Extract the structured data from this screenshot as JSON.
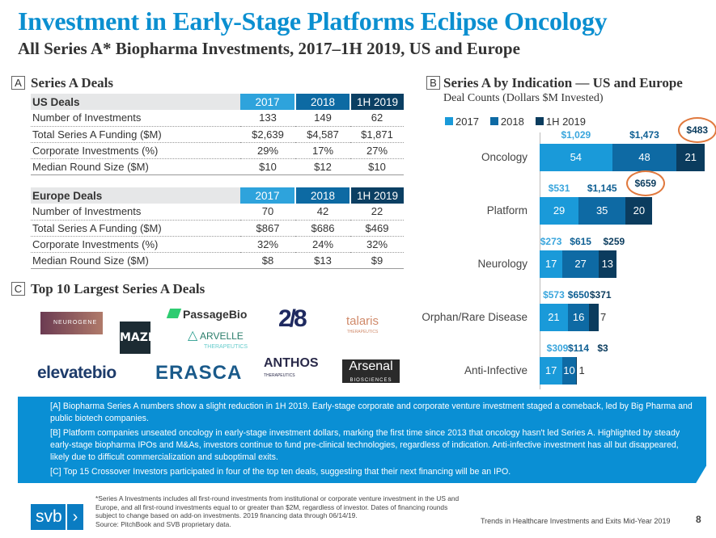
{
  "title": "Investment in Early-Stage Platforms Eclipse Oncology",
  "subtitle": "All Series A* Biopharma Investments, 2017–1H 2019, US and Europe",
  "section_a": {
    "letter": "A",
    "title": "Series A Deals",
    "columns": [
      "2017",
      "2018",
      "1H 2019"
    ],
    "us": {
      "header": "US Deals",
      "rows": [
        {
          "label": "Number of Investments",
          "values": [
            "133",
            "149",
            "62"
          ]
        },
        {
          "label": "Total Series A Funding ($M)",
          "values": [
            "$2,639",
            "$4,587",
            "$1,871"
          ]
        },
        {
          "label": "Corporate Investments (%)",
          "values": [
            "29%",
            "17%",
            "27%"
          ]
        },
        {
          "label": "Median Round Size ($M)",
          "values": [
            "$10",
            "$12",
            "$10"
          ]
        }
      ]
    },
    "europe": {
      "header": "Europe Deals",
      "rows": [
        {
          "label": "Number of Investments",
          "values": [
            "70",
            "42",
            "22"
          ]
        },
        {
          "label": "Total Series A Funding ($M)",
          "values": [
            "$867",
            "$686",
            "$469"
          ]
        },
        {
          "label": "Corporate Investments (%)",
          "values": [
            "32%",
            "24%",
            "32%"
          ]
        },
        {
          "label": "Median Round Size ($M)",
          "values": [
            "$8",
            "$13",
            "$9"
          ]
        }
      ]
    }
  },
  "section_c": {
    "letter": "C",
    "title": "Top 10 Largest Series A Deals",
    "logos": [
      "NEUROGENE",
      "MAZE",
      "PassageBio",
      "ARVELLE",
      "THERAPEUTICS",
      "2/8",
      "talaris",
      "THERAPEUTICS",
      "elevatebio",
      "ERASCA",
      "ANTHOS",
      "THERAPEUTICS",
      "Arsenal",
      "BIOSCIENCES"
    ]
  },
  "section_b": {
    "letter": "B"
  },
  "chart_data": {
    "type": "bar",
    "orientation": "horizontal",
    "stacked": true,
    "title": "Series A by Indication — US and Europe",
    "subtitle": "Deal Counts (Dollars $M Invested)",
    "legend_position": "top-left",
    "categories": [
      "Oncology",
      "Platform",
      "Neurology",
      "Orphan/Rare Disease",
      "Anti-Infective"
    ],
    "series": [
      {
        "name": "2017",
        "color": "#1a9ad9",
        "values": [
          54,
          29,
          17,
          21,
          17
        ],
        "dollars": [
          "$1,029",
          "$531",
          "$273",
          "$573",
          "$309"
        ]
      },
      {
        "name": "2018",
        "color": "#0e6aa4",
        "values": [
          48,
          35,
          27,
          16,
          10
        ],
        "dollars": [
          "$1,473",
          "$1,145",
          "$615",
          "$650",
          "$114"
        ]
      },
      {
        "name": "1H 2019",
        "color": "#0b3c5e",
        "values": [
          21,
          20,
          13,
          7,
          1
        ],
        "dollars": [
          "$483",
          "$659",
          "$259",
          "$371",
          "$3"
        ]
      }
    ],
    "dollar_label_colors": [
      "#3aa6dd",
      "#0e5f93",
      "#0b3c5e"
    ],
    "highlighted": [
      {
        "category": "Oncology",
        "series": "1H 2019"
      },
      {
        "category": "Platform",
        "series": "1H 2019"
      }
    ],
    "highlight_color": "#e0793e",
    "grid": false
  },
  "notes": [
    "[A] Biopharma Series A numbers show a slight reduction in 1H 2019.  Early-stage corporate and corporate venture investment staged a comeback, led by Big Pharma and public biotech companies.",
    "[B] Platform companies unseated oncology in early-stage investment dollars, marking the first time since 2013 that oncology hasn't led Series A. Highlighted by steady early-stage biopharma IPOs and M&As, investors continue to fund pre-clinical technologies, regardless of indication. Anti-infective investment has all but disappeared, likely due to difficult commercialization and suboptimal exits.",
    "[C] Top 15 Crossover Investors participated in four of the top ten deals, suggesting that their next financing will be an IPO."
  ],
  "footnote": "*Series A Investments includes all first-round investments from institutional or corporate venture investment in the US and Europe, and all first-round investments equal to or greater than $2M, regardless of investor. Dates of financing rounds subject to change based on add-on investments. 2019 financing data through 06/14/19.",
  "source": "Source: PitchBook and SVB proprietary data.",
  "brand": "svb",
  "report_title": "Trends in Healthcare Investments and Exits Mid-Year 2019",
  "page_number": "8"
}
